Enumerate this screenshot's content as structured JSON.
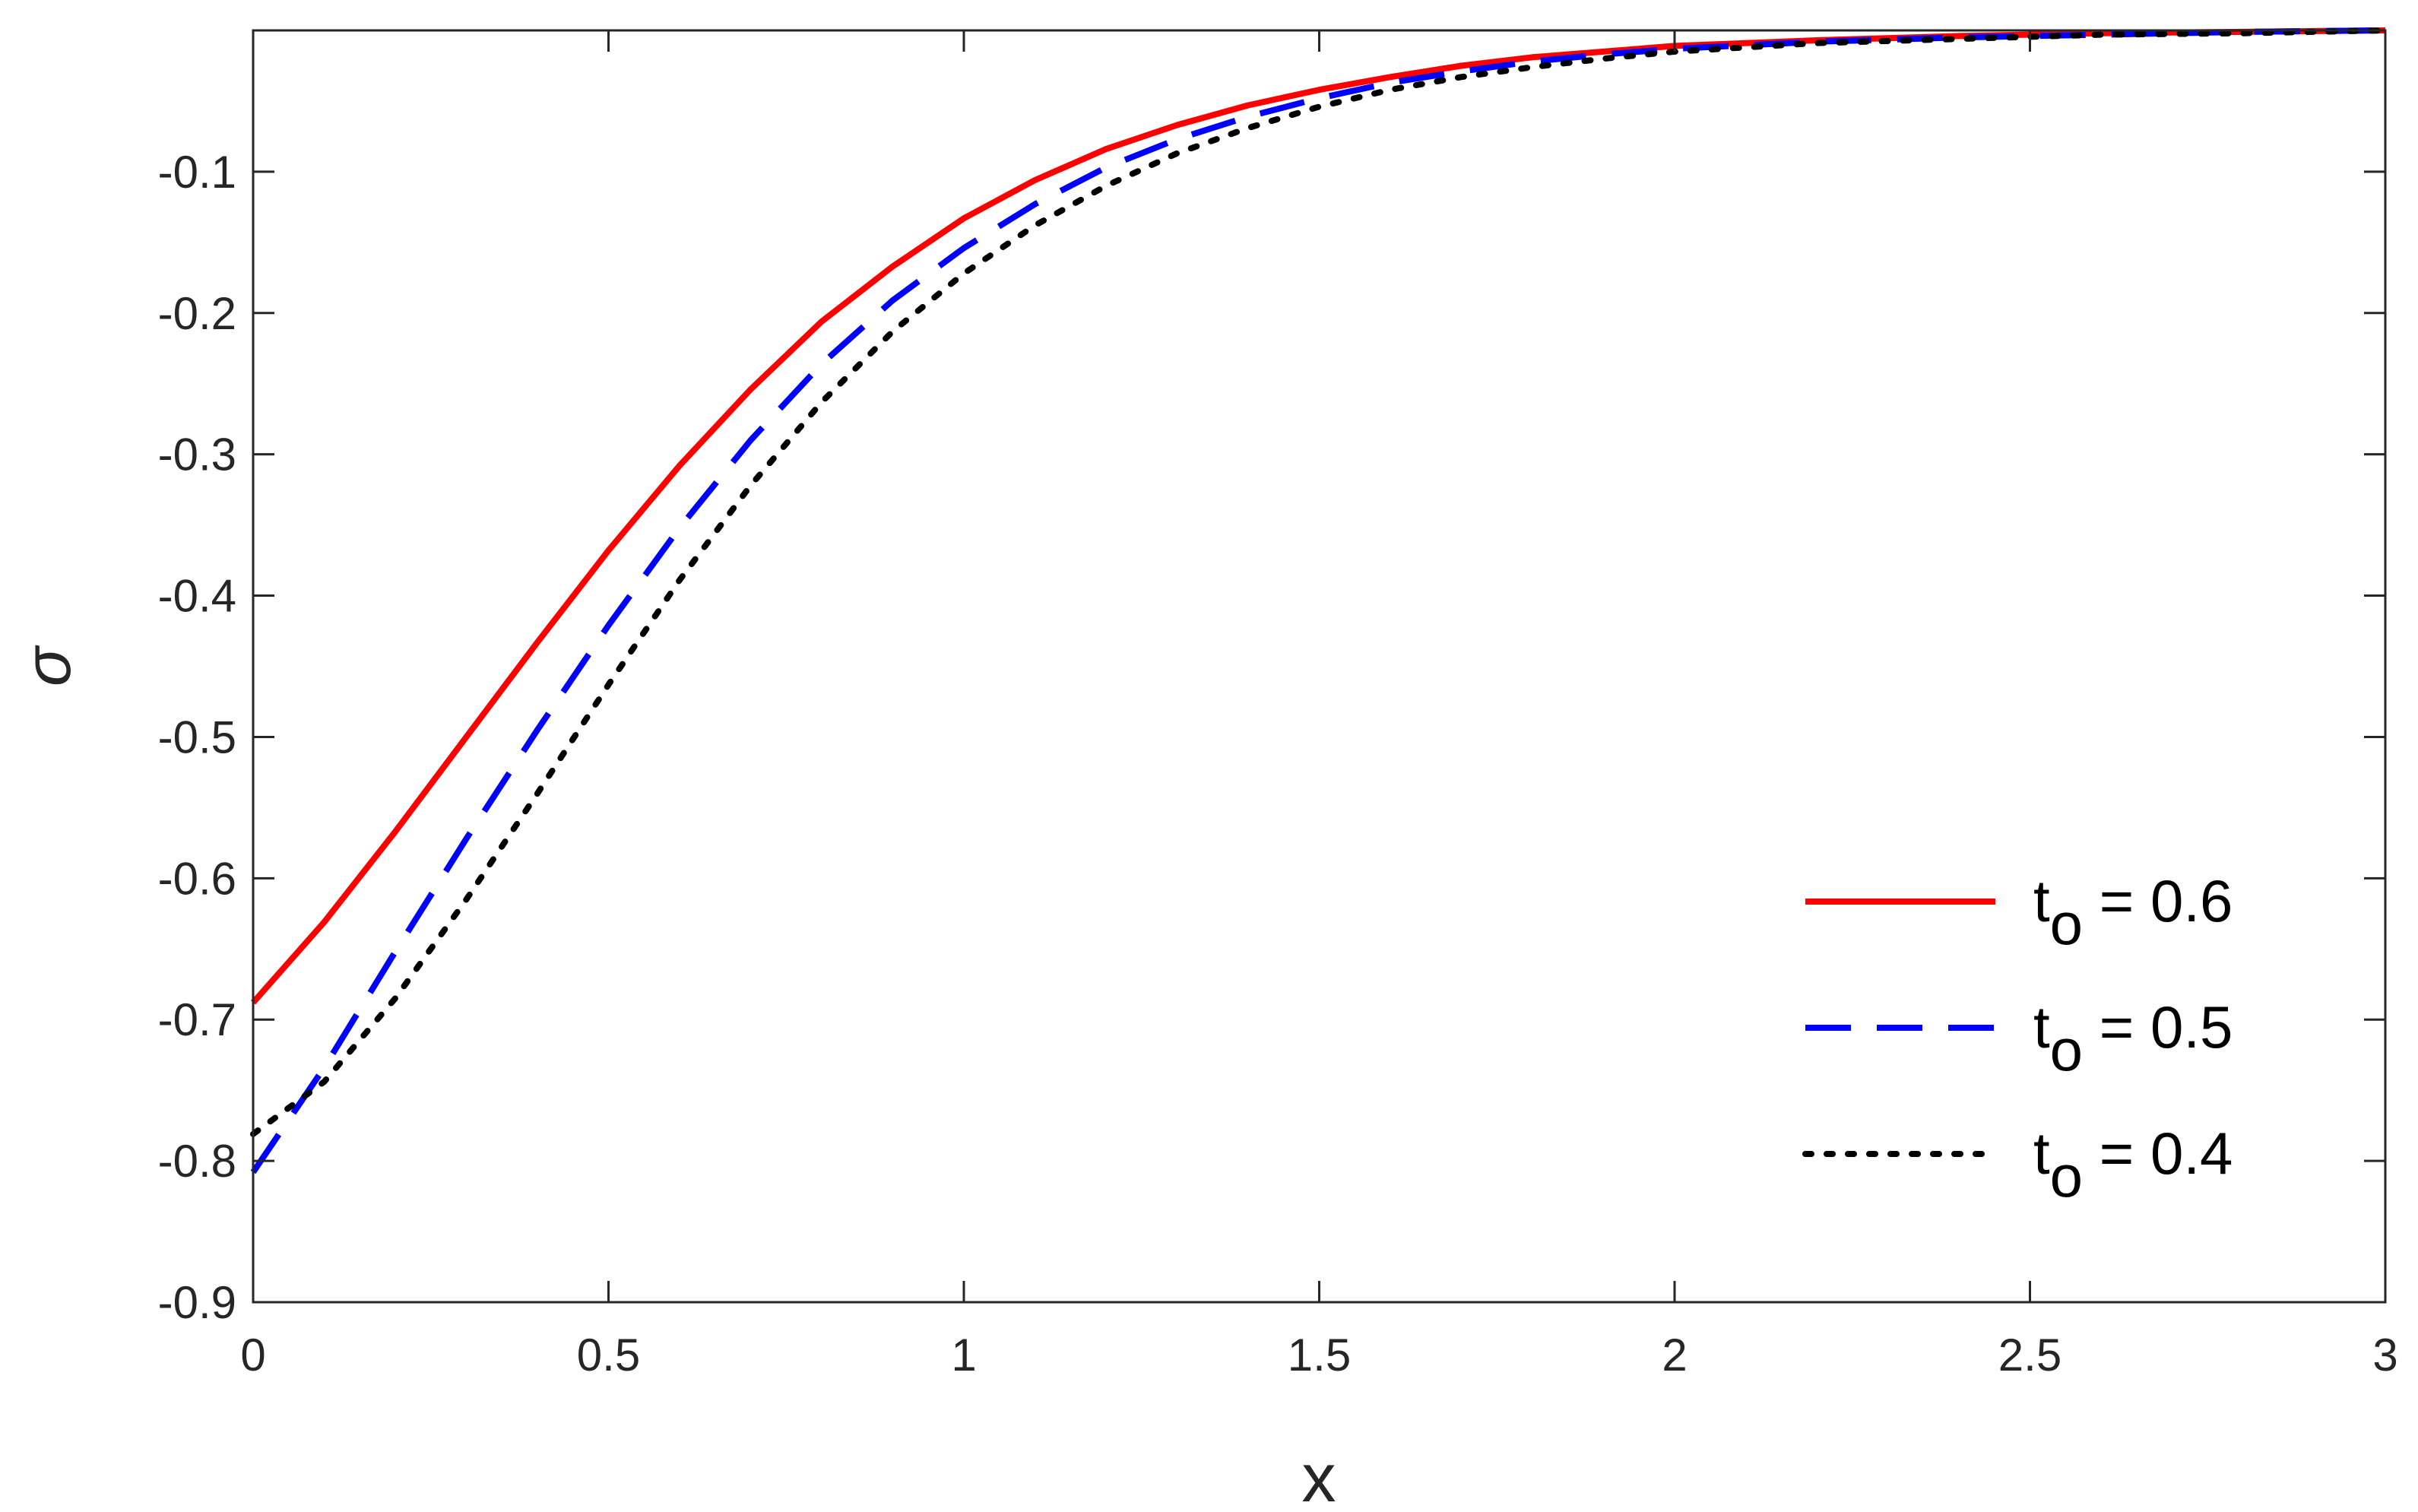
{
  "chart_data": {
    "type": "line",
    "title": "",
    "xlabel": "x",
    "ylabel": "σ",
    "xlim": [
      0,
      3
    ],
    "ylim": [
      -0.9,
      0
    ],
    "xticks": [
      0,
      0.5,
      1,
      1.5,
      2,
      2.5,
      3
    ],
    "xtick_labels": [
      "0",
      "0.5",
      "1",
      "1.5",
      "2",
      "2.5",
      "3"
    ],
    "yticks": [
      -0.1,
      -0.2,
      -0.3,
      -0.4,
      -0.5,
      -0.6,
      -0.7,
      -0.8,
      -0.9
    ],
    "ytick_labels": [
      "-0.1",
      "-0.2",
      "-0.3",
      "-0.4",
      "-0.5",
      "-0.6",
      "-0.7",
      "-0.8",
      "-0.9"
    ],
    "grid": false,
    "legend_position": "bottom-right",
    "series": [
      {
        "name": "t",
        "subscript": "o",
        "suffix": " = 0.6",
        "color": "#ff0000",
        "dash": "solid",
        "x": [
          0,
          0.1,
          0.2,
          0.3,
          0.4,
          0.5,
          0.6,
          0.7,
          0.8,
          0.9,
          1.0,
          1.1,
          1.2,
          1.3,
          1.4,
          1.5,
          1.6,
          1.7,
          1.8,
          1.9,
          2.0,
          2.2,
          2.4,
          2.6,
          2.8,
          3.0
        ],
        "y": [
          -0.688,
          -0.631,
          -0.567,
          -0.5,
          -0.433,
          -0.368,
          -0.308,
          -0.254,
          -0.206,
          -0.167,
          -0.133,
          -0.106,
          -0.084,
          -0.067,
          -0.053,
          -0.042,
          -0.033,
          -0.025,
          -0.019,
          -0.015,
          -0.011,
          -0.007,
          -0.004,
          -0.002,
          -0.001,
          0.0
        ]
      },
      {
        "name": "t",
        "subscript": "o",
        "suffix": " = 0.5",
        "color": "#0000ff",
        "dash": "dashed",
        "x": [
          0,
          0.1,
          0.2,
          0.3,
          0.4,
          0.5,
          0.6,
          0.7,
          0.8,
          0.9,
          1.0,
          1.1,
          1.2,
          1.3,
          1.4,
          1.5,
          1.6,
          1.7,
          1.8,
          1.9,
          2.0,
          2.2,
          2.4,
          2.6,
          2.8,
          3.0
        ],
        "y": [
          -0.808,
          -0.734,
          -0.652,
          -0.572,
          -0.495,
          -0.421,
          -0.352,
          -0.29,
          -0.236,
          -0.191,
          -0.154,
          -0.123,
          -0.097,
          -0.077,
          -0.061,
          -0.048,
          -0.037,
          -0.029,
          -0.022,
          -0.017,
          -0.013,
          -0.008,
          -0.005,
          -0.003,
          -0.001,
          0.0
        ]
      },
      {
        "name": "t",
        "subscript": "o",
        "suffix": " = 0.4",
        "color": "#000000",
        "dash": "dotted",
        "x": [
          0,
          0.1,
          0.2,
          0.3,
          0.4,
          0.5,
          0.6,
          0.7,
          0.8,
          0.9,
          1.0,
          1.1,
          1.2,
          1.3,
          1.4,
          1.5,
          1.6,
          1.7,
          1.8,
          1.9,
          2.0,
          2.2,
          2.4,
          2.6,
          2.8,
          3.0
        ],
        "y": [
          -0.781,
          -0.744,
          -0.685,
          -0.615,
          -0.54,
          -0.463,
          -0.389,
          -0.322,
          -0.263,
          -0.213,
          -0.172,
          -0.138,
          -0.11,
          -0.087,
          -0.069,
          -0.054,
          -0.042,
          -0.033,
          -0.026,
          -0.02,
          -0.015,
          -0.009,
          -0.006,
          -0.003,
          -0.002,
          0.0
        ]
      }
    ]
  }
}
